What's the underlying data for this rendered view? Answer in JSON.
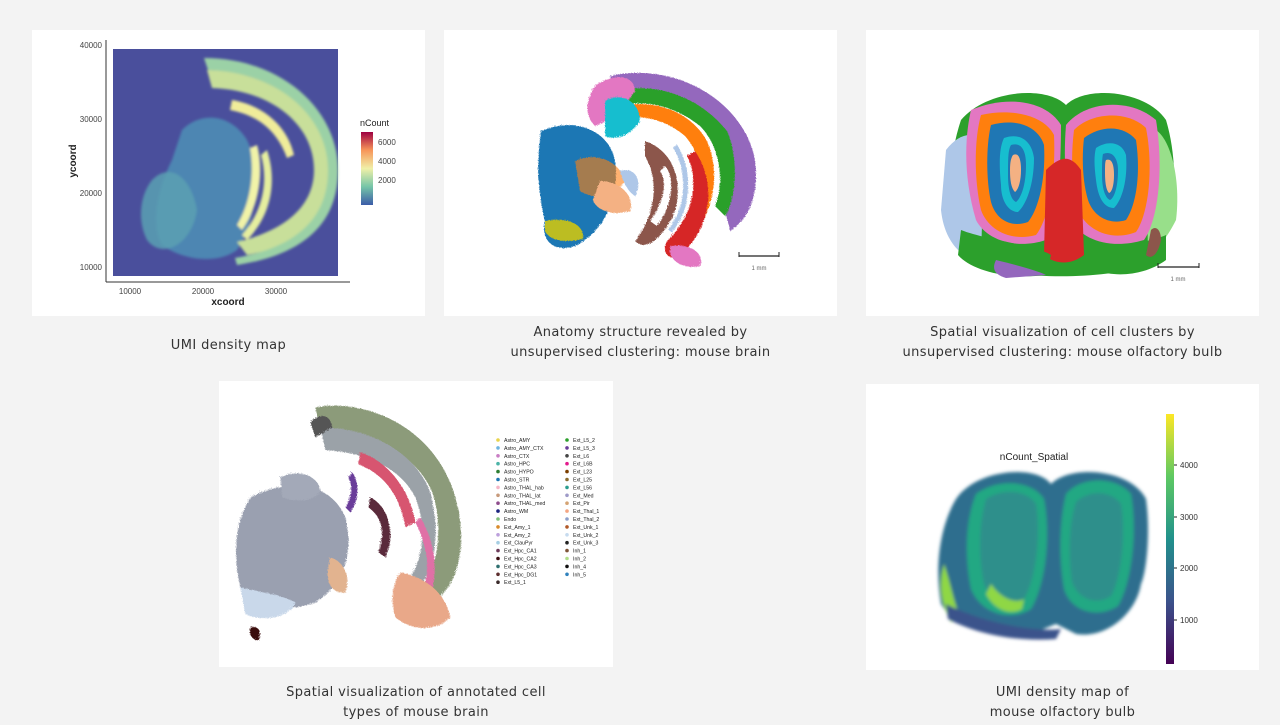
{
  "captions": {
    "umi_brain": "UMI density map",
    "anatomy_brain_1": "Anatomy structure revealed by",
    "anatomy_brain_2": "unsupervised clustering: mouse brain",
    "clusters_ob_1": "Spatial visualization of cell clusters by",
    "clusters_ob_2": "unsupervised clustering: mouse olfactory bulb",
    "celltypes_1": "Spatial visualization of annotated cell",
    "celltypes_2": "types of mouse brain",
    "umi_ob_1": "UMI density map  of",
    "umi_ob_2": "mouse olfactory bulb"
  },
  "scalebar_label": "1 mm",
  "colors": {
    "brain_clusters": [
      "#1f77b4",
      "#ff7f0e",
      "#2ca02c",
      "#d62728",
      "#9467bd",
      "#8c564b",
      "#e377c2",
      "#bcbd22",
      "#17becf",
      "#aec7e8"
    ]
  },
  "chart_data": [
    {
      "type": "heatmap",
      "title": "",
      "xlabel": "xcoord",
      "ylabel": "ycoord",
      "xticks": [
        "10000",
        "20000",
        "30000"
      ],
      "yticks": [
        "40000",
        "30000",
        "20000",
        "10000"
      ],
      "xlim": [
        6000,
        38000
      ],
      "ylim": [
        8000,
        40000
      ],
      "legend_title": "nCount",
      "legend_ticks": [
        "6000",
        "4000",
        "2000"
      ],
      "colormap": "Spectral (reversed)"
    },
    {
      "type": "scatter",
      "title": "",
      "note": "spatial clusters, mouse brain"
    },
    {
      "type": "scatter",
      "title": "",
      "note": "spatial clusters, mouse olfactory bulb"
    },
    {
      "type": "scatter",
      "title": "",
      "legend_col1": [
        "Astro_AMY",
        "Astro_AMY_CTX",
        "Astro_CTX",
        "Astro_HPC",
        "Astro_HYPO",
        "Astro_STR",
        "Astro_THAL_hab",
        "Astro_THAL_lat",
        "Astro_THAL_med",
        "Astro_WM",
        "Endo",
        "Ext_Amy_1",
        "Ext_Amy_2",
        "Ext_ClauPyr",
        "Ext_Hpc_CA1",
        "Ext_Hpc_CA2",
        "Ext_Hpc_CA3",
        "Ext_Hpc_DG1",
        "Ext_L5_1"
      ],
      "legend_col2": [
        "Ext_L5_2",
        "Ext_L5_3",
        "Ext_L6",
        "Ext_L6B",
        "Ext_L23",
        "Ext_L25",
        "Ext_L56",
        "Ext_Med",
        "Ext_Pir",
        "Ext_Thal_1",
        "Ext_Thal_2",
        "Ext_Unk_1",
        "Ext_Unk_2",
        "Ext_Unk_3",
        "Inh_1",
        "Inh_2",
        "Inh_4",
        "Inh_5"
      ],
      "legend_colors_col1": [
        "#e8d44d",
        "#6fb5e0",
        "#c97ec4",
        "#4bb3a7",
        "#2e7d32",
        "#1f77b4",
        "#f5b7c8",
        "#c79a7b",
        "#8e4c8c",
        "#1a237e",
        "#7fbf7b",
        "#d98b2b",
        "#bca0dc",
        "#a6cee3",
        "#6d3b5a",
        "#3b0d11",
        "#2f6f6f",
        "#5d2e2e",
        "#3a2a2a"
      ],
      "legend_colors_col2": [
        "#2ca02c",
        "#6a3d9a",
        "#444444",
        "#e31a8c",
        "#7b3f00",
        "#8c6d31",
        "#2a9d8f",
        "#9e9ac8",
        "#d4a373",
        "#f4a582",
        "#8da0cb",
        "#b15928",
        "#c6dbef",
        "#222222",
        "#7f5539",
        "#b2df8a",
        "#111111",
        "#3182bd"
      ]
    },
    {
      "type": "heatmap",
      "title": "nCount_Spatial",
      "legend_ticks": [
        "4000",
        "3000",
        "2000",
        "1000"
      ],
      "colormap": "viridis"
    }
  ]
}
